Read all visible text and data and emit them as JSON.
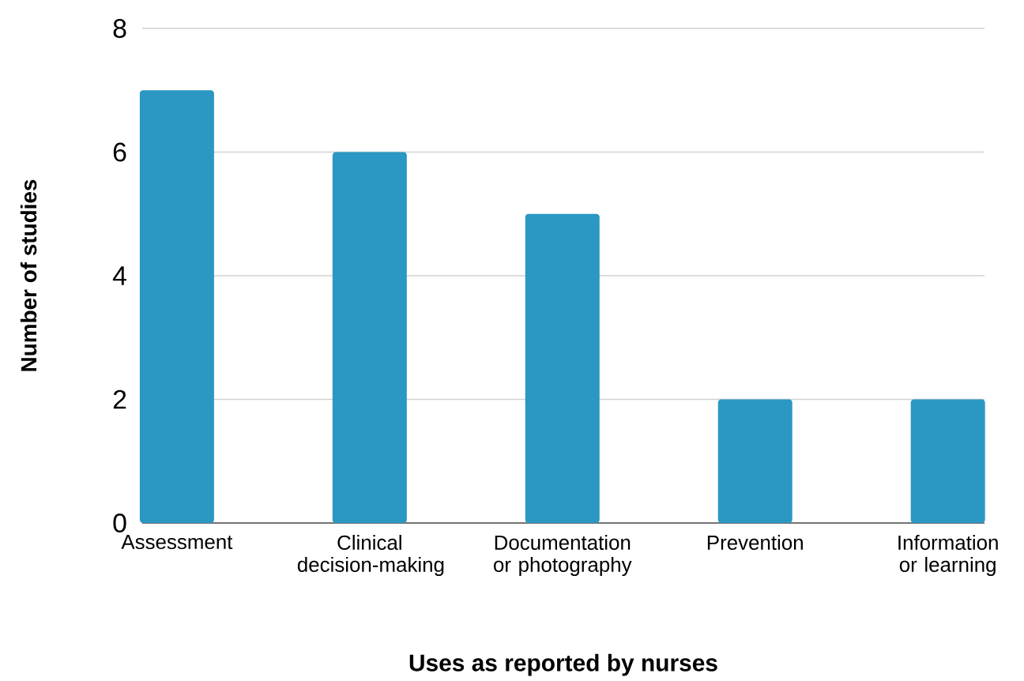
{
  "chart_data": {
    "type": "bar",
    "xlabel": "Uses as reported by nurses",
    "ylabel": "Number of studies",
    "categories": [
      "Assessment",
      "Clinical decision-making",
      "Documentation or photography",
      "Prevention",
      "Information or learning"
    ],
    "values": [
      7,
      6,
      5,
      2,
      2
    ],
    "color": "#2a98c3",
    "ylim": [
      0,
      8
    ],
    "yticks": [
      0,
      2,
      4,
      6,
      8
    ],
    "grid": "y"
  }
}
